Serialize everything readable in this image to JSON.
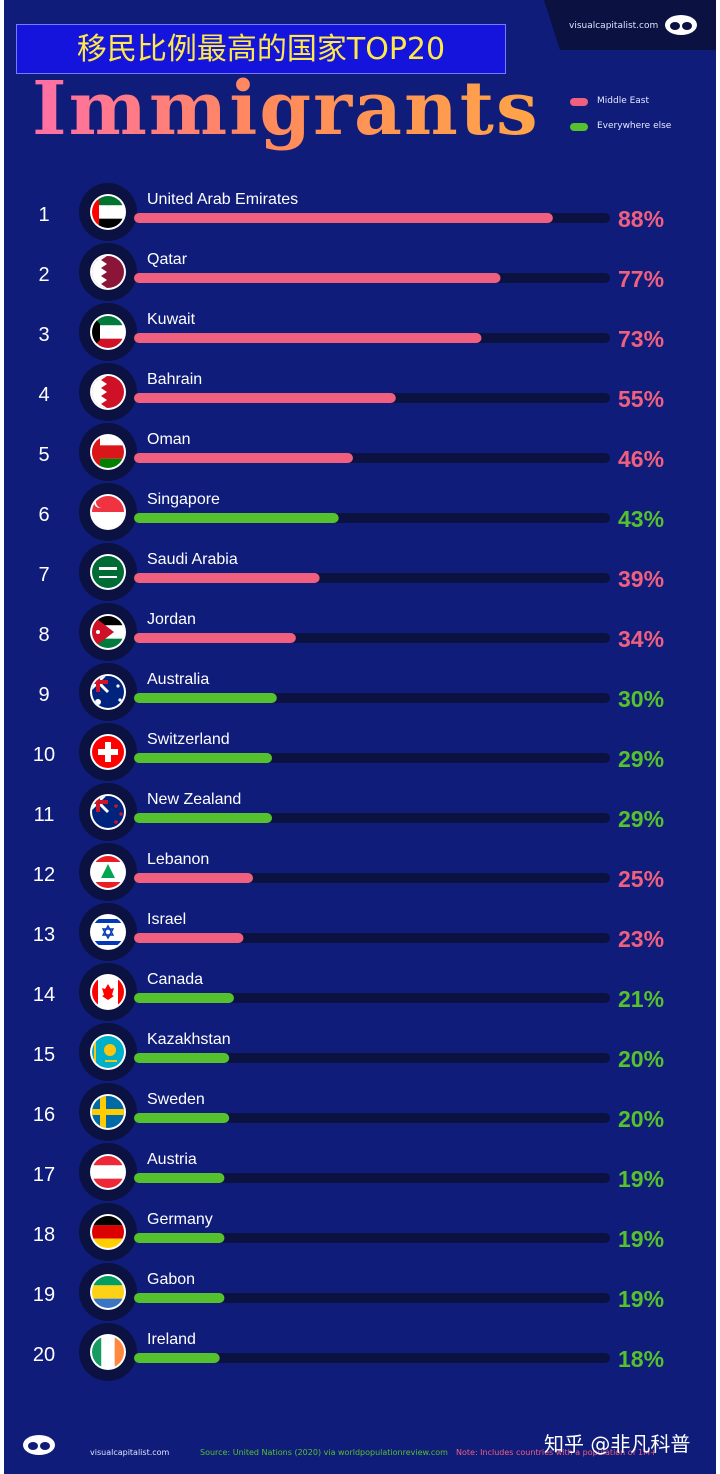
{
  "overlay_title": "移民比例最高的国家TOP20",
  "title": "Immigrants",
  "brand": "visualcapitalist.com",
  "legend": [
    {
      "label": "Middle East",
      "color": "#f0607e"
    },
    {
      "label": "Everywhere else",
      "color": "#55c12c"
    }
  ],
  "footer": {
    "brand": "visualcapitalist.com",
    "source": "Source: United Nations (2020) via worldpopulationreview.com",
    "note": "Note: Includes countries with a population of 1M+",
    "watermark": "知乎 @非凡科普"
  },
  "colors": {
    "background": "#0f1c7a",
    "track": "#0b1140",
    "middle_east": "#f0607e",
    "everywhere_else": "#55c12c"
  },
  "chart_data": {
    "type": "bar",
    "orientation": "horizontal",
    "value_unit": "%",
    "xlim": [
      0,
      100
    ],
    "series": [
      {
        "name": "Middle East",
        "color": "#f0607e"
      },
      {
        "name": "Everywhere else",
        "color": "#55c12c"
      }
    ],
    "rows": [
      {
        "rank": "1",
        "country": "United Arab Emirates",
        "value": 88,
        "label": "88%",
        "group": "Middle East",
        "flag": "uae-flag-icon"
      },
      {
        "rank": "2",
        "country": "Qatar",
        "value": 77,
        "label": "77%",
        "group": "Middle East",
        "flag": "qatar-flag-icon"
      },
      {
        "rank": "3",
        "country": "Kuwait",
        "value": 73,
        "label": "73%",
        "group": "Middle East",
        "flag": "kuwait-flag-icon"
      },
      {
        "rank": "4",
        "country": "Bahrain",
        "value": 55,
        "label": "55%",
        "group": "Middle East",
        "flag": "bahrain-flag-icon"
      },
      {
        "rank": "5",
        "country": "Oman",
        "value": 46,
        "label": "46%",
        "group": "Middle East",
        "flag": "oman-flag-icon"
      },
      {
        "rank": "6",
        "country": "Singapore",
        "value": 43,
        "label": "43%",
        "group": "Everywhere else",
        "flag": "singapore-flag-icon"
      },
      {
        "rank": "7",
        "country": "Saudi Arabia",
        "value": 39,
        "label": "39%",
        "group": "Middle East",
        "flag": "saudi-arabia-flag-icon"
      },
      {
        "rank": "8",
        "country": "Jordan",
        "value": 34,
        "label": "34%",
        "group": "Middle East",
        "flag": "jordan-flag-icon"
      },
      {
        "rank": "9",
        "country": "Australia",
        "value": 30,
        "label": "30%",
        "group": "Everywhere else",
        "flag": "australia-flag-icon"
      },
      {
        "rank": "10",
        "country": "Switzerland",
        "value": 29,
        "label": "29%",
        "group": "Everywhere else",
        "flag": "switzerland-flag-icon"
      },
      {
        "rank": "11",
        "country": "New Zealand",
        "value": 29,
        "label": "29%",
        "group": "Everywhere else",
        "flag": "new-zealand-flag-icon"
      },
      {
        "rank": "12",
        "country": "Lebanon",
        "value": 25,
        "label": "25%",
        "group": "Middle East",
        "flag": "lebanon-flag-icon"
      },
      {
        "rank": "13",
        "country": "Israel",
        "value": 23,
        "label": "23%",
        "group": "Middle East",
        "flag": "israel-flag-icon"
      },
      {
        "rank": "14",
        "country": "Canada",
        "value": 21,
        "label": "21%",
        "group": "Everywhere else",
        "flag": "canada-flag-icon"
      },
      {
        "rank": "15",
        "country": "Kazakhstan",
        "value": 20,
        "label": "20%",
        "group": "Everywhere else",
        "flag": "kazakhstan-flag-icon"
      },
      {
        "rank": "16",
        "country": "Sweden",
        "value": 20,
        "label": "20%",
        "group": "Everywhere else",
        "flag": "sweden-flag-icon"
      },
      {
        "rank": "17",
        "country": "Austria",
        "value": 19,
        "label": "19%",
        "group": "Everywhere else",
        "flag": "austria-flag-icon"
      },
      {
        "rank": "18",
        "country": "Germany",
        "value": 19,
        "label": "19%",
        "group": "Everywhere else",
        "flag": "germany-flag-icon"
      },
      {
        "rank": "19",
        "country": "Gabon",
        "value": 19,
        "label": "19%",
        "group": "Everywhere else",
        "flag": "gabon-flag-icon"
      },
      {
        "rank": "20",
        "country": "Ireland",
        "value": 18,
        "label": "18%",
        "group": "Everywhere else",
        "flag": "ireland-flag-icon"
      }
    ]
  }
}
